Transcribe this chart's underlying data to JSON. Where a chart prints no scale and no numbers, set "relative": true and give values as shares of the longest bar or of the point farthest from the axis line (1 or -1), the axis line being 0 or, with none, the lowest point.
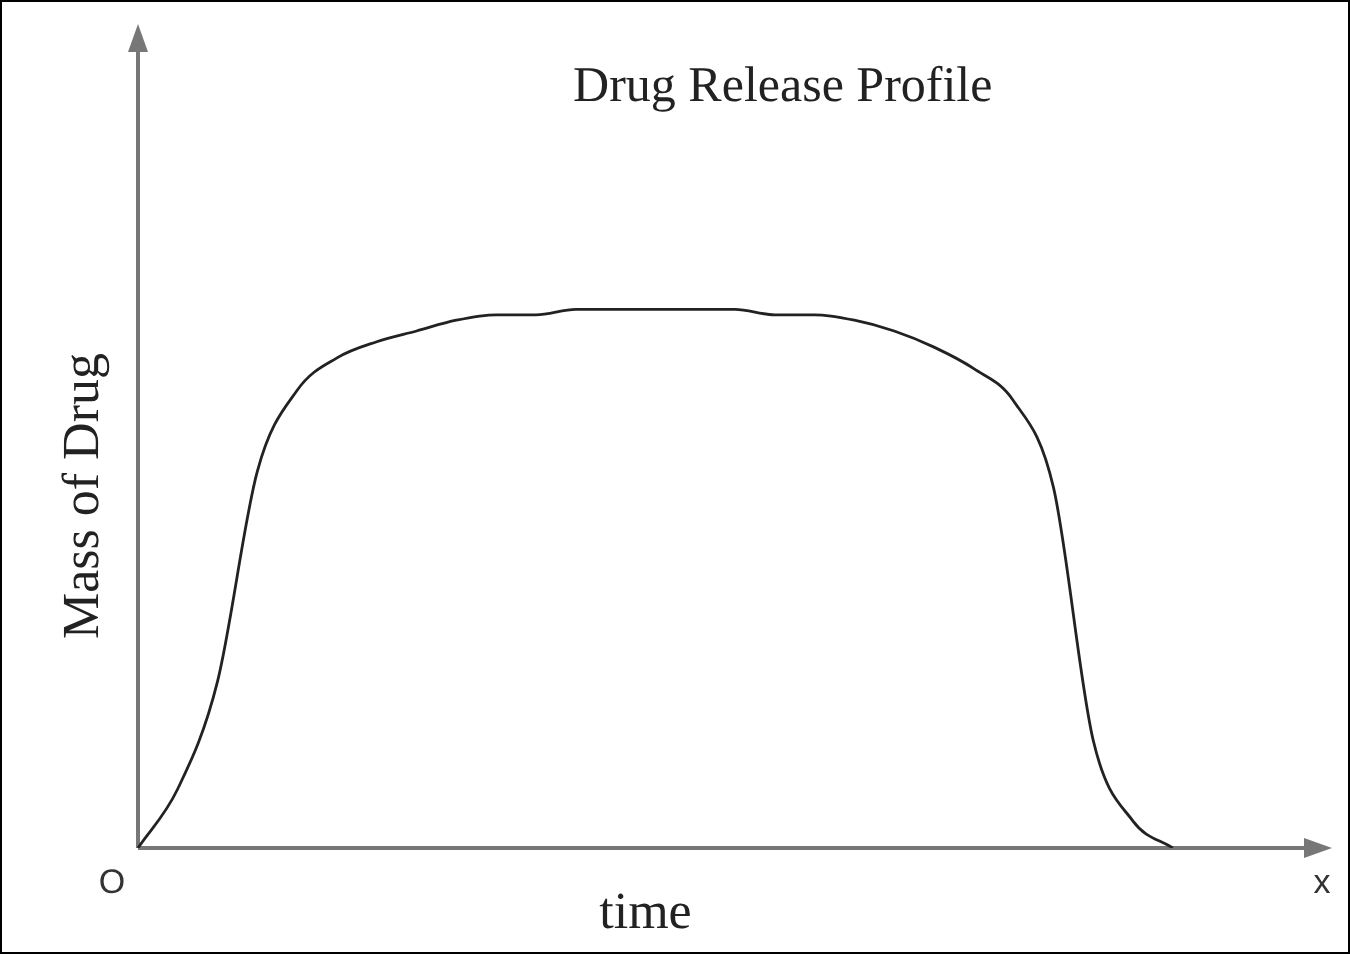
{
  "chart_data": {
    "type": "line",
    "title": "Drug Release Profile",
    "xlabel": "time",
    "ylabel": "Mass of Drug",
    "relative": true,
    "grid": false,
    "legend": false,
    "marker": "none",
    "categories": [
      null,
      null,
      null,
      null,
      null,
      null,
      null,
      null,
      null,
      null,
      null,
      null,
      null,
      null,
      null,
      null,
      null,
      null,
      null,
      null,
      null,
      null,
      null,
      null,
      null,
      null,
      null,
      null,
      null,
      null,
      null
    ],
    "series": [
      {
        "color": "#222222",
        "values": [
          0,
          0.11,
          0.31,
          0.7,
          0.85,
          0.91,
          0.94,
          0.96,
          0.98,
          0.99,
          0.99,
          1,
          1,
          1,
          1,
          1,
          0.99,
          0.99,
          0.98,
          0.96,
          0.93,
          0.89,
          0.83,
          0.67,
          0.2,
          0.05,
          0,
          null,
          null,
          null,
          null
        ]
      }
    ],
    "annotations": [
      "O",
      "x"
    ]
  }
}
